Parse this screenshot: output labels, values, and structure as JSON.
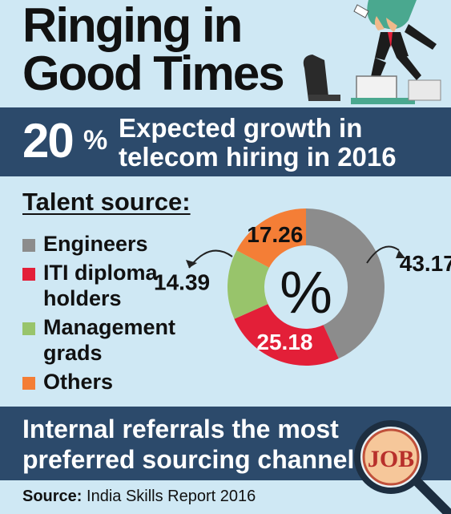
{
  "title": {
    "line1": "Ringing in",
    "line2": "Good Times"
  },
  "headline": {
    "value": "20",
    "unit": "%",
    "line1": "Expected growth in",
    "line2": "telecom hiring in 2016"
  },
  "section_title": "Talent source:",
  "legend": [
    {
      "label": "Engineers",
      "color": "#8c8c8c"
    },
    {
      "label": "ITI diploma holders",
      "color": "#e31f38"
    },
    {
      "label": "Management grads",
      "color": "#98c46b"
    },
    {
      "label": "Others",
      "color": "#f47e36"
    }
  ],
  "center_label": "%",
  "chart_data": {
    "type": "pie",
    "title": "Talent source:",
    "unit": "%",
    "categories": [
      "Engineers",
      "ITI diploma holders",
      "Management grads",
      "Others"
    ],
    "values": [
      43.17,
      25.18,
      14.39,
      17.26
    ],
    "value_labels": [
      "43.17",
      "25.18",
      "14.39",
      "17.26"
    ],
    "colors": [
      "#8c8c8c",
      "#e31f38",
      "#98c46b",
      "#f47e36"
    ],
    "donut": true,
    "legend_position": "left"
  },
  "bottom_banner": {
    "line1": "Internal referrals the most",
    "line2": "preferred sourcing channel"
  },
  "source": {
    "label": "Source:",
    "text": "India Skills Report 2016"
  },
  "job_badge": "JOB",
  "colors": {
    "banner": "#2c4a6b",
    "background": "#cfe8f4"
  }
}
